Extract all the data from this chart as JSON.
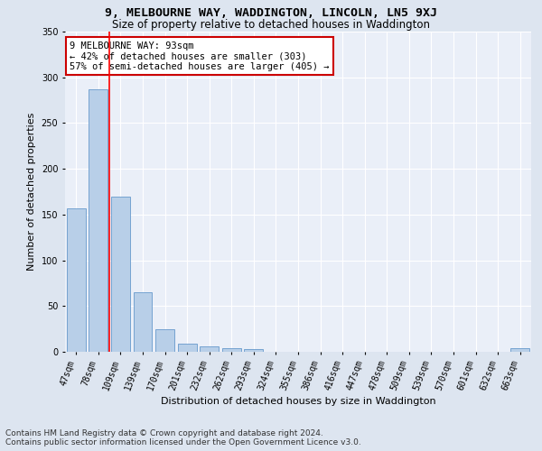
{
  "title": "9, MELBOURNE WAY, WADDINGTON, LINCOLN, LN5 9XJ",
  "subtitle": "Size of property relative to detached houses in Waddington",
  "xlabel": "Distribution of detached houses by size in Waddington",
  "ylabel": "Number of detached properties",
  "categories": [
    "47sqm",
    "78sqm",
    "109sqm",
    "139sqm",
    "170sqm",
    "201sqm",
    "232sqm",
    "262sqm",
    "293sqm",
    "324sqm",
    "355sqm",
    "386sqm",
    "416sqm",
    "447sqm",
    "478sqm",
    "509sqm",
    "539sqm",
    "570sqm",
    "601sqm",
    "632sqm",
    "663sqm"
  ],
  "values": [
    157,
    287,
    170,
    65,
    25,
    9,
    6,
    4,
    3,
    0,
    0,
    0,
    0,
    0,
    0,
    0,
    0,
    0,
    0,
    0,
    4
  ],
  "bar_color": "#b8cfe8",
  "bar_edge_color": "#6699cc",
  "red_line_x": 1.5,
  "annotation_line1": "9 MELBOURNE WAY: 93sqm",
  "annotation_line2": "← 42% of detached houses are smaller (303)",
  "annotation_line3": "57% of semi-detached houses are larger (405) →",
  "annotation_box_color": "#ffffff",
  "annotation_box_edge_color": "#cc0000",
  "ylim": [
    0,
    350
  ],
  "yticks": [
    0,
    50,
    100,
    150,
    200,
    250,
    300,
    350
  ],
  "footer_line1": "Contains HM Land Registry data © Crown copyright and database right 2024.",
  "footer_line2": "Contains public sector information licensed under the Open Government Licence v3.0.",
  "bg_color": "#dde5f0",
  "plot_bg_color": "#eaeff8",
  "grid_color": "#ffffff",
  "title_fontsize": 9.5,
  "subtitle_fontsize": 8.5,
  "xlabel_fontsize": 8,
  "ylabel_fontsize": 8,
  "tick_fontsize": 7,
  "annotation_fontsize": 7.5,
  "footer_fontsize": 6.5
}
